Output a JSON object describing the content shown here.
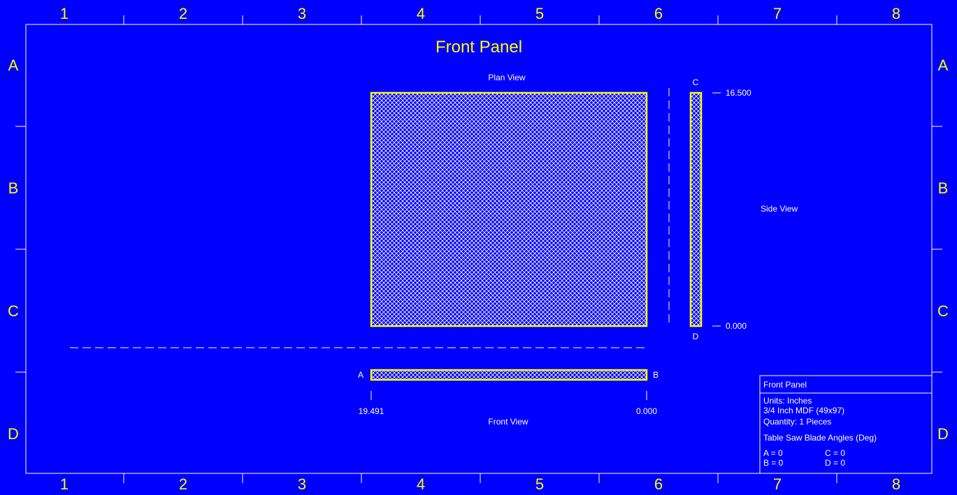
{
  "colors": {
    "background": "#0000ff",
    "accent": "#ffff00",
    "line": "#ffffff"
  },
  "border": {
    "columns": [
      "1",
      "2",
      "3",
      "4",
      "5",
      "6",
      "7",
      "8"
    ],
    "rows": [
      "A",
      "B",
      "C",
      "D"
    ]
  },
  "drawing": {
    "title": "Front Panel",
    "plan_view_label": "Plan View",
    "side_view_label": "Side View",
    "front_view_label": "Front View",
    "edge_a": "A",
    "edge_b": "B",
    "edge_c": "C",
    "edge_d": "D",
    "dim_top": "16.500",
    "dim_bottom": "0.000",
    "dim_left": "19.491",
    "dim_right": "0.000"
  },
  "title_block": {
    "name": "Front Panel",
    "units": "Units: Inches",
    "material": "3/4 Inch MDF (49x97)",
    "quantity": "Quantity: 1 Pieces",
    "angles_heading": "Table Saw Blade Angles (Deg)",
    "angle_a": "A = 0",
    "angle_c": "C = 0",
    "angle_b": "B = 0",
    "angle_d": "D = 0"
  }
}
